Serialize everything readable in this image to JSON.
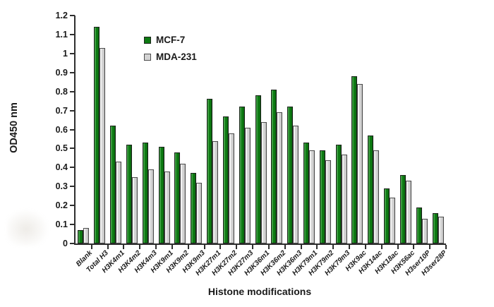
{
  "figure": {
    "background": "#ffffff"
  },
  "chart_data": {
    "type": "bar",
    "title": "",
    "xlabel": "Histone modifications",
    "ylabel": "OD450 nm",
    "ylim": [
      0,
      1.2
    ],
    "ytick_step": 0.1,
    "ytick_labels": [
      "0",
      "0.1",
      "0.2",
      "0.3",
      "0.4",
      "0.5",
      "0.6",
      "0.7",
      "0.8",
      "0.9",
      "1",
      "1.1",
      "1.2"
    ],
    "grid": false,
    "legend_position": "inside-top-left",
    "categories": [
      "Blank",
      "Total H3",
      "H3K4m1",
      "H3K4m2",
      "H3K4m3",
      "H3K9m1",
      "H3K9m2",
      "H3K9m3",
      "H3K27m1",
      "H3K27m2",
      "H3K27m3",
      "H3K36m1",
      "H3K36m2",
      "H3K36m3",
      "H3K79m1",
      "H3K79m2",
      "H3K79m3",
      "H3K9ac",
      "H3K14ac",
      "H3K18ac",
      "H3K56ac",
      "H3ser10P",
      "H3ser28P"
    ],
    "series": [
      {
        "name": "MCF-7",
        "color": "#0d7a12",
        "values": [
          0.07,
          1.14,
          0.62,
          0.52,
          0.53,
          0.51,
          0.48,
          0.37,
          0.76,
          0.67,
          0.72,
          0.78,
          0.81,
          0.72,
          0.53,
          0.49,
          0.52,
          0.88,
          0.57,
          0.29,
          0.36,
          0.19,
          0.16
        ]
      },
      {
        "name": "MDA-231",
        "color": "#d3d3d3",
        "values": [
          0.08,
          1.03,
          0.43,
          0.35,
          0.39,
          0.38,
          0.42,
          0.32,
          0.54,
          0.58,
          0.61,
          0.64,
          0.69,
          0.62,
          0.49,
          0.44,
          0.47,
          0.84,
          0.49,
          0.24,
          0.33,
          0.13,
          0.14
        ]
      }
    ]
  },
  "colors": {
    "axis": "#2e2e2e",
    "text": "#1a1a1a",
    "mcf7_fill": "#0d7a12",
    "mda231_fill": "#d3d3d3"
  }
}
